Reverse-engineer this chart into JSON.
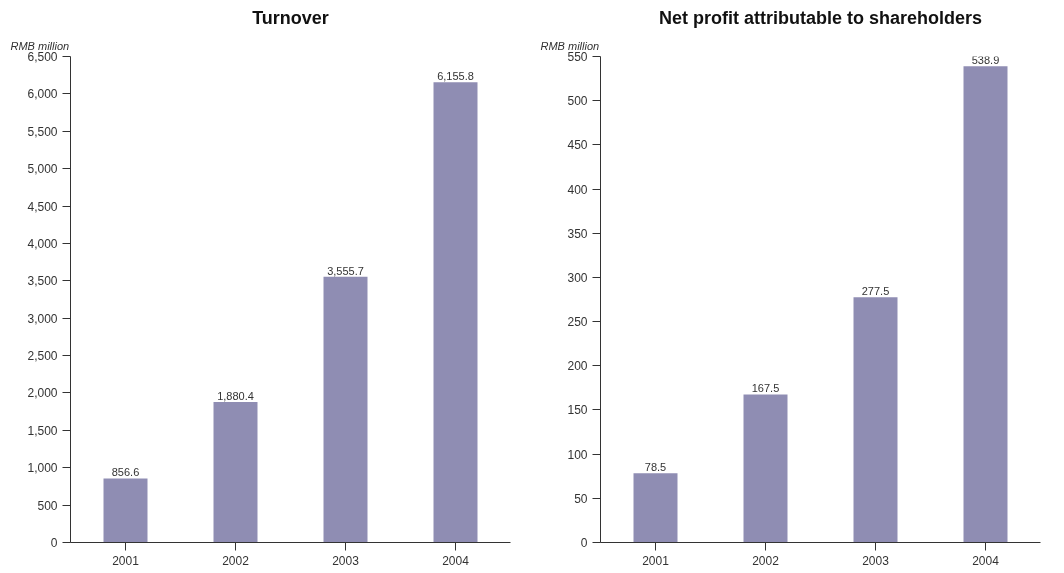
{
  "chart_data": [
    {
      "type": "bar",
      "title": "Turnover",
      "ylabel": "RMB million",
      "categories": [
        "2001",
        "2002",
        "2003",
        "2004"
      ],
      "values": [
        856.6,
        1880.4,
        3555.7,
        6155.8
      ],
      "value_labels": [
        "856.6",
        "1,880.4",
        "3,555.7",
        "6,155.8"
      ],
      "color": "#8f8db3",
      "ylim": [
        0,
        6500
      ],
      "yticks": [
        0,
        500,
        {
          "value": 1000,
          "label": "1,000"
        },
        {
          "value": 1500,
          "label": "1,500"
        },
        {
          "value": 2000,
          "label": "2,000"
        },
        {
          "value": 2500,
          "label": "2,500"
        },
        {
          "value": 3000,
          "label": "3,000"
        },
        {
          "value": 3500,
          "label": "3,500"
        },
        {
          "value": 4000,
          "label": "4,000"
        },
        {
          "value": 4500,
          "label": "4,500"
        },
        {
          "value": 5000,
          "label": "5,000"
        },
        {
          "value": 5500,
          "label": "5,500"
        },
        {
          "value": 6000,
          "label": "6,000"
        },
        {
          "value": 6500,
          "label": "6,500"
        }
      ],
      "grid": false
    },
    {
      "type": "bar",
      "title": "Net profit attributable to shareholders",
      "ylabel": "RMB million",
      "categories": [
        "2001",
        "2002",
        "2003",
        "2004"
      ],
      "values": [
        78.5,
        167.5,
        277.5,
        538.9
      ],
      "value_labels": [
        "78.5",
        "167.5",
        "277.5",
        "538.9"
      ],
      "color": "#8f8db3",
      "ylim": [
        0,
        550
      ],
      "yticks": [
        0,
        50,
        100,
        150,
        200,
        250,
        300,
        350,
        400,
        450,
        500,
        550
      ],
      "grid": false
    }
  ]
}
